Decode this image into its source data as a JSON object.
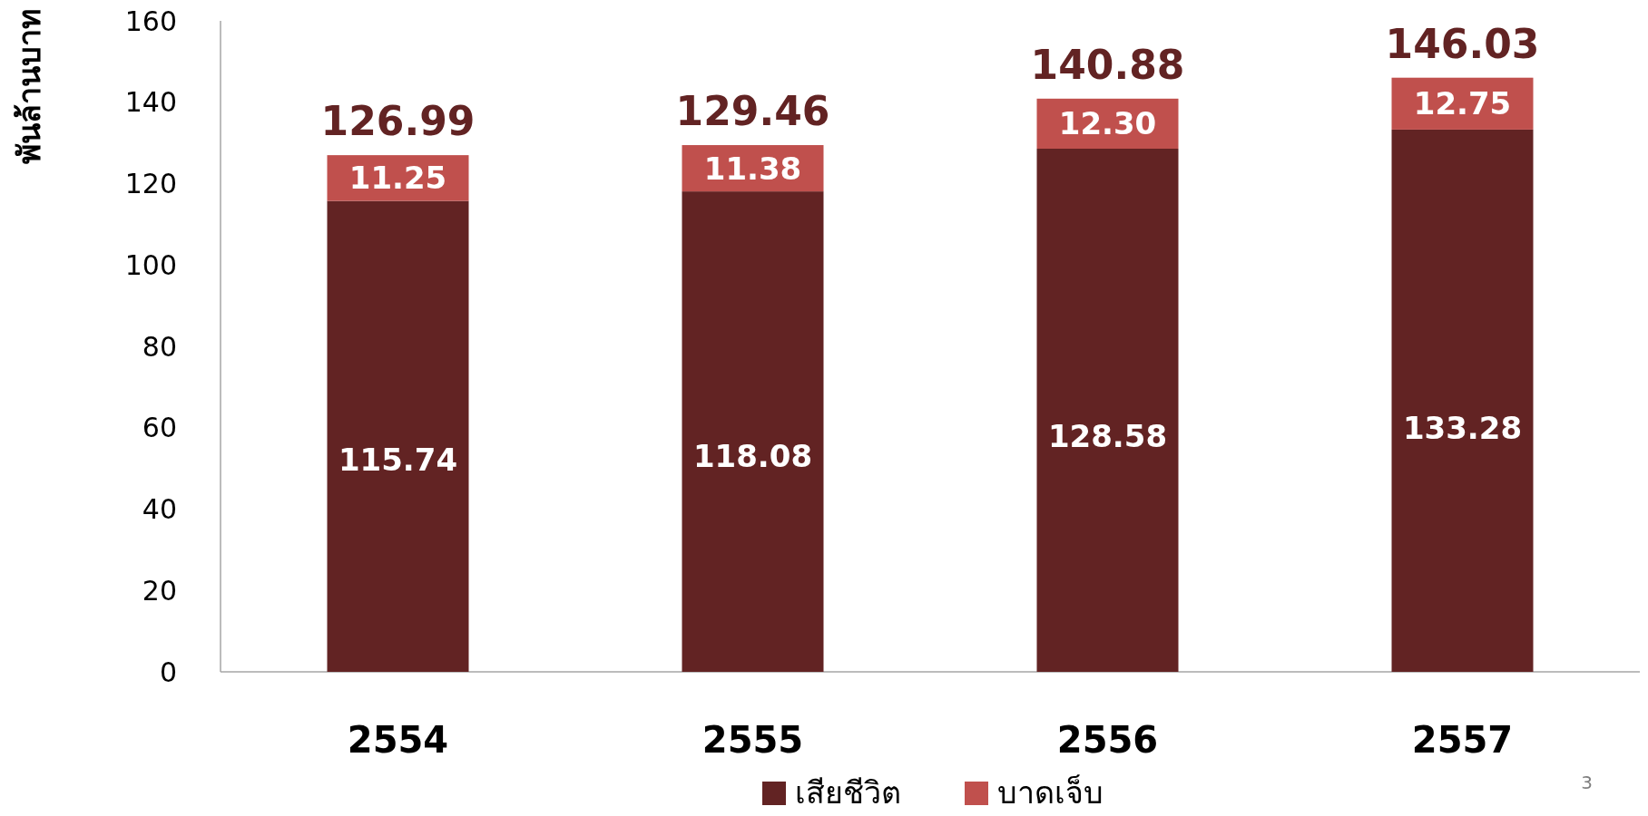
{
  "chart_data": {
    "type": "bar",
    "stacked": true,
    "ylabel": "พันล้านบาท",
    "categories": [
      "2554",
      "2555",
      "2556",
      "2557"
    ],
    "series": [
      {
        "name": "เสียชีวิต",
        "color": "#622323",
        "values": [
          115.74,
          118.08,
          128.58,
          133.28
        ],
        "value_labels": [
          "115.74",
          "118.08",
          "128.58",
          "133.28"
        ]
      },
      {
        "name": "บาดเจ็บ",
        "color": "#c0504d",
        "values": [
          11.25,
          11.38,
          12.3,
          12.75
        ],
        "value_labels": [
          "11.25",
          "11.38",
          "12.30",
          "12.75"
        ]
      }
    ],
    "totals": [
      "126.99",
      "129.46",
      "140.88",
      "146.03"
    ],
    "ylim": [
      0,
      160
    ],
    "yticks": [
      0,
      20,
      40,
      60,
      80,
      100,
      120,
      140,
      160
    ],
    "legend": "bottom",
    "grid": false,
    "annotations": [
      "3"
    ]
  }
}
